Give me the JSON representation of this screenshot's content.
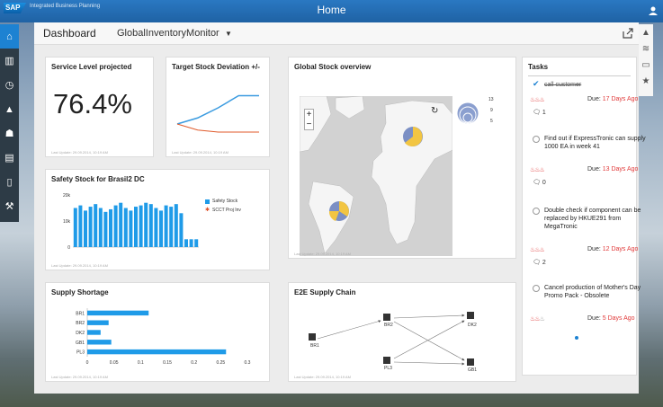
{
  "topbar": {
    "logo": "SAP",
    "app_name": "Integrated Business Planning",
    "title": "Home"
  },
  "header": {
    "title": "Dashboard",
    "selector": "GlobalInventoryMonitor"
  },
  "tiles": {
    "service_level": {
      "title": "Service Level projected",
      "value": "76.4%",
      "updated": "Last Update: 29.09.2014, 10:19 AM"
    },
    "target_stock": {
      "title": "Target Stock Deviation +/-",
      "updated": "Last Update: 29.09.2014, 10:19 AM"
    },
    "global_stock": {
      "title": "Global Stock overview",
      "legend": [
        "13",
        "9",
        "5"
      ],
      "updated": "Last Update: 29.09.2014, 10:19 AM"
    },
    "safety_stock": {
      "title": "Safety Stock for Brasil2 DC",
      "updated": "Last Update: 29.09.2014, 10:19 AM"
    },
    "supply_shortage": {
      "title": "Supply Shortage",
      "updated": "Last Update: 29.09.2014, 10:19 AM"
    },
    "e2e": {
      "title": "E2E Supply Chain",
      "nodes": [
        "BR1",
        "BR2",
        "DK2",
        "PL3",
        "GB1"
      ],
      "updated": "Last Update: 29.09.2014, 10:19 AM"
    }
  },
  "tasks": {
    "title": "Tasks",
    "items": [
      {
        "text": "call customer",
        "done": true,
        "due_label": "Due:",
        "due": "17 Days Ago",
        "comments": "1",
        "priority": 3
      },
      {
        "text": "Find out if ExpressTronic can supply 1000 EA in week 41",
        "done": false,
        "due_label": "Due:",
        "due": "13 Days Ago",
        "comments": "0",
        "priority": 3
      },
      {
        "text": "Double check if component can be replaced by HKUE291 from MegaTronic",
        "done": false,
        "due_label": "Due:",
        "due": "12 Days Ago",
        "comments": "2",
        "priority": 3
      },
      {
        "text": "Cancel production of Mother's Day Promo Pack - Obsolete",
        "done": false,
        "due_label": "Due:",
        "due": "5 Days Ago",
        "comments": "",
        "priority": 2
      }
    ]
  },
  "chart_data": [
    {
      "type": "line",
      "title": "Target Stock Deviation +/-",
      "x": [
        1,
        2,
        3,
        4,
        5
      ],
      "series": [
        {
          "color": "#3a9be0",
          "values": [
            0.2,
            0.35,
            0.6,
            0.9,
            0.9
          ]
        },
        {
          "color": "#e05a2a",
          "values": [
            0.2,
            0.05,
            0.0,
            0.0,
            0.0
          ]
        }
      ]
    },
    {
      "type": "bar",
      "title": "Safety Stock for Brasil2 DC",
      "ylim": [
        0,
        20000
      ],
      "yticks": [
        "20k",
        "10k",
        "0"
      ],
      "series": [
        {
          "name": "Safety Stock",
          "color": "#1f9be8",
          "values": [
            15000,
            16000,
            14000,
            15500,
            16500,
            15000,
            13500,
            14500,
            16000,
            17000,
            15000,
            14000,
            15500,
            16000,
            17000,
            16500,
            15000,
            14000,
            16000,
            15500,
            16500,
            13000,
            3000,
            3000,
            3000
          ]
        },
        {
          "name": "SCCT Proj Inv",
          "color": "#e0522a",
          "values": []
        }
      ]
    },
    {
      "type": "bar",
      "orientation": "horizontal",
      "title": "Supply Shortage",
      "categories": [
        "BR1",
        "BR2",
        "DK2",
        "GB1",
        "PL3"
      ],
      "values": [
        0.115,
        0.04,
        0.025,
        0.045,
        0.26
      ],
      "xticks": [
        "0",
        "0.05",
        "0.1",
        "0.15",
        "0.2",
        "0.25",
        "0.3"
      ],
      "xlim": [
        0,
        0.3
      ],
      "color": "#1f9be8"
    }
  ]
}
